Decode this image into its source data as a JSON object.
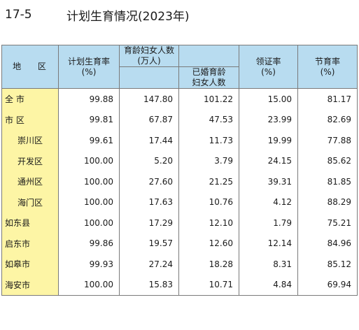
{
  "title": {
    "number": "17-5",
    "text": "计划生育情况(2023年)"
  },
  "headers": {
    "region": "地 区",
    "plan_birth_rate": [
      "计划生育率",
      "(%)"
    ],
    "women_childbearing": [
      "育龄妇女人数",
      "(万人)"
    ],
    "married_women": [
      "已婚育龄",
      "妇女人数"
    ],
    "certificate_rate": [
      "领证率",
      "(%)"
    ],
    "contraception_rate": [
      "节育率",
      "(%)"
    ]
  },
  "rows": [
    {
      "region": "全 市",
      "indent": false,
      "plan_birth_rate": "99.88",
      "women": "147.80",
      "married": "101.22",
      "cert": "15.00",
      "contra": "81.17"
    },
    {
      "region": "市 区",
      "indent": false,
      "plan_birth_rate": "99.81",
      "women": "67.87",
      "married": "47.53",
      "cert": "23.99",
      "contra": "82.69"
    },
    {
      "region": "崇川区",
      "indent": true,
      "plan_birth_rate": "99.61",
      "women": "17.44",
      "married": "11.73",
      "cert": "19.99",
      "contra": "77.88"
    },
    {
      "region": "开发区",
      "indent": true,
      "plan_birth_rate": "100.00",
      "women": "5.20",
      "married": "3.79",
      "cert": "24.15",
      "contra": "85.62"
    },
    {
      "region": "通州区",
      "indent": true,
      "plan_birth_rate": "100.00",
      "women": "27.60",
      "married": "21.25",
      "cert": "39.31",
      "contra": "81.85"
    },
    {
      "region": "海门区",
      "indent": true,
      "plan_birth_rate": "100.00",
      "women": "17.63",
      "married": "10.76",
      "cert": "4.12",
      "contra": "88.29"
    },
    {
      "region": "如东县",
      "indent": false,
      "plan_birth_rate": "100.00",
      "women": "17.29",
      "married": "12.10",
      "cert": "1.79",
      "contra": "75.21"
    },
    {
      "region": "启东市",
      "indent": false,
      "plan_birth_rate": "99.86",
      "women": "19.57",
      "married": "12.60",
      "cert": "12.14",
      "contra": "84.96"
    },
    {
      "region": "如皋市",
      "indent": false,
      "plan_birth_rate": "99.93",
      "women": "27.24",
      "married": "18.28",
      "cert": "8.31",
      "contra": "85.12"
    },
    {
      "region": "海安市",
      "indent": false,
      "plan_birth_rate": "100.00",
      "women": "15.83",
      "married": "10.71",
      "cert": "4.84",
      "contra": "69.94"
    }
  ],
  "colors": {
    "header_bg": "#b8dcf0",
    "region_bg": "#fdf5a5",
    "border": "#7a7a7a"
  }
}
